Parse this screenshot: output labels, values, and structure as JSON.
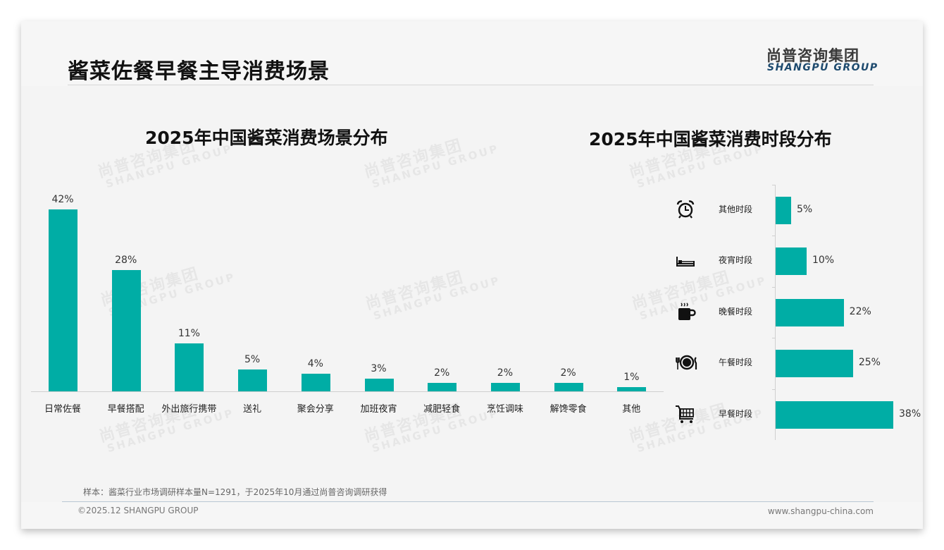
{
  "header": {
    "title": "酱菜佐餐早餐主导消费场景",
    "logo_cn": "尚普咨询集团",
    "logo_en": "SHANGPU GROUP"
  },
  "watermark": {
    "cn": "尚普咨询集团",
    "en": "SHANGPU GROUP"
  },
  "colors": {
    "bar": "#00ada5",
    "logo_en": "#1d4a6e",
    "title": "#111111"
  },
  "footer": {
    "note": "样本：酱菜行业市场调研样本量N=1291，于2025年10月通过尚普咨询调研获得",
    "copyright": "©2025.12 SHANGPU GROUP",
    "website": "www.shangpu-china.com"
  },
  "chart_data": [
    {
      "type": "bar",
      "title": "2025年中国酱菜消费场景分布",
      "xlabel": "",
      "ylabel": "",
      "categories": [
        "日常佐餐",
        "早餐搭配",
        "外出旅行携带",
        "送礼",
        "聚会分享",
        "加班夜宵",
        "减肥轻食",
        "烹饪调味",
        "解馋零食",
        "其他"
      ],
      "values": [
        42,
        28,
        11,
        5,
        4,
        3,
        2,
        2,
        2,
        1
      ],
      "labels": [
        "42%",
        "28%",
        "11%",
        "5%",
        "4%",
        "3%",
        "2%",
        "2%",
        "2%",
        "1%"
      ],
      "unit": "%",
      "ylim": [
        0,
        45
      ],
      "grid": false,
      "legend": "none"
    },
    {
      "type": "bar",
      "orientation": "horizontal",
      "title": "2025年中国酱菜消费时段分布",
      "xlabel": "",
      "ylabel": "",
      "categories": [
        "其他时段",
        "夜宵时段",
        "晚餐时段",
        "午餐时段",
        "早餐时段"
      ],
      "values": [
        5,
        10,
        22,
        25,
        38
      ],
      "labels": [
        "5%",
        "10%",
        "22%",
        "25%",
        "38%"
      ],
      "icons": [
        "alarm-clock-icon",
        "bed-icon",
        "hot-cup-icon",
        "plate-cutlery-icon",
        "shopping-cart-icon"
      ],
      "unit": "%",
      "xlim": [
        0,
        40
      ],
      "grid": false,
      "legend": "none"
    }
  ]
}
